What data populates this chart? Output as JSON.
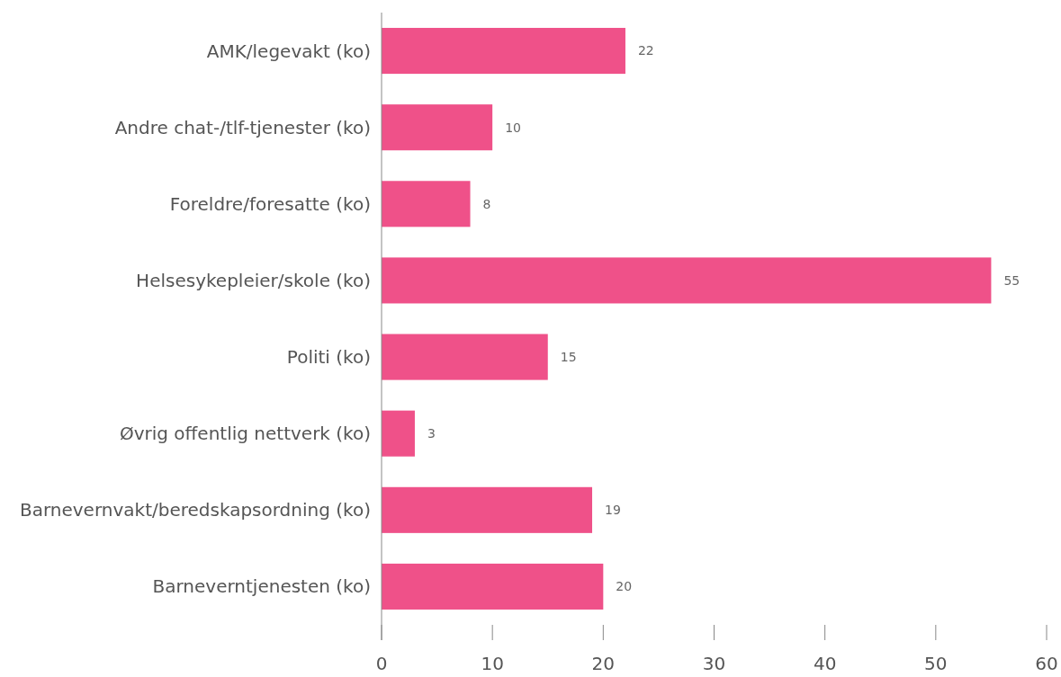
{
  "chart_data": {
    "type": "bar",
    "orientation": "horizontal",
    "categories": [
      "AMK/legevakt (ko)",
      "Andre chat-/tlf-tjenester (ko)",
      "Foreldre/foresatte (ko)",
      "Helsesykepleier/skole (ko)",
      "Politi (ko)",
      "Øvrig offentlig nettverk (ko)",
      "Barnevernvakt/beredskapsordning (ko)",
      "Barneverntjenesten (ko)"
    ],
    "values": [
      22,
      10,
      8,
      55,
      15,
      3,
      19,
      20
    ],
    "color": "#ef5189",
    "xlim": [
      0,
      60
    ],
    "xticks": [
      0,
      10,
      20,
      30,
      40,
      50,
      60
    ],
    "data_labels": true
  }
}
